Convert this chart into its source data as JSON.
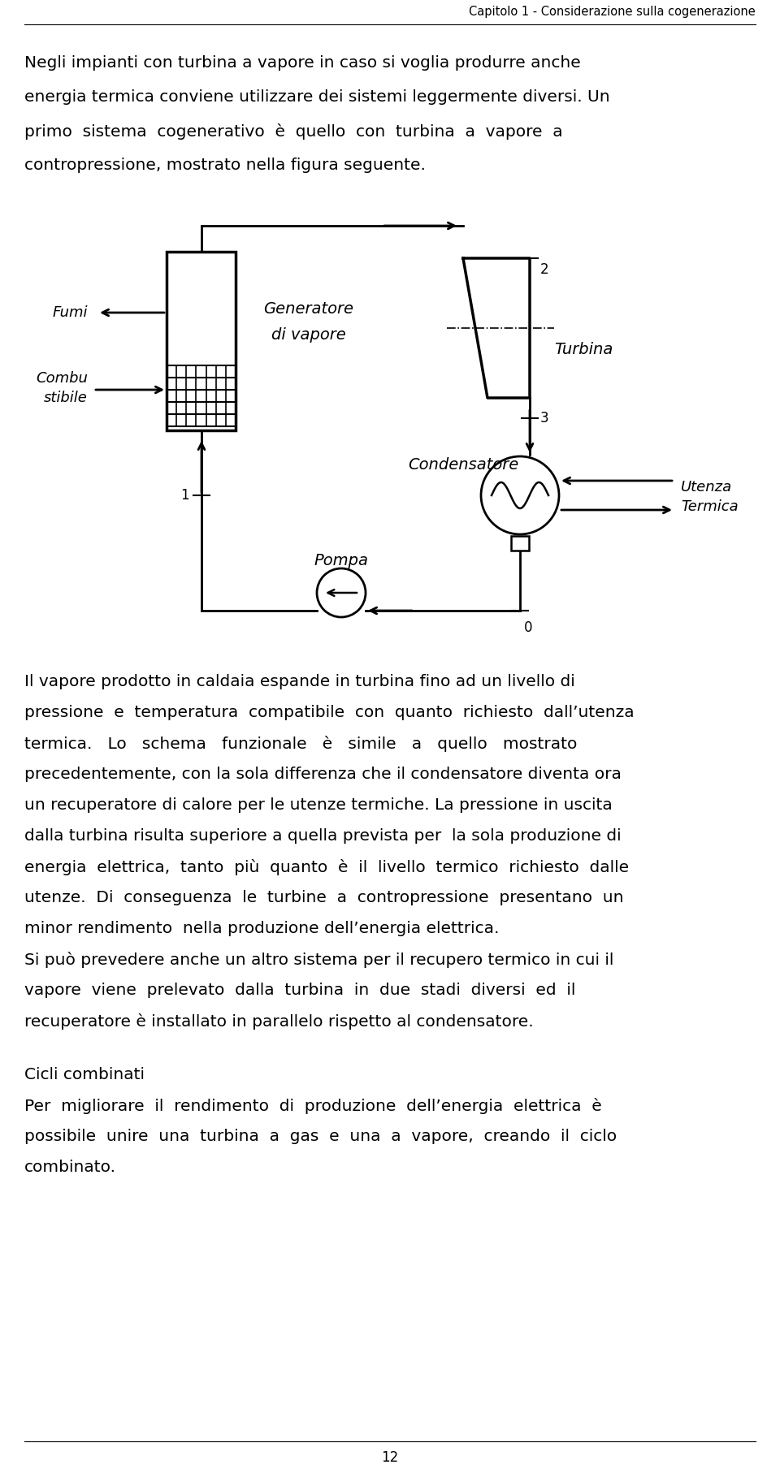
{
  "header_text": "Capitolo 1 - Considerazione sulla cogenerazione",
  "page_number": "12",
  "bg_color": "#ffffff",
  "text_color": "#000000",
  "para1_lines": [
    "Negli impianti con turbina a vapore in caso si voglia produrre anche",
    "energia termica conviene utilizzare dei sistemi leggermente diversi. Un",
    "primo  sistema  cogenerativo  è  quello  con  turbina  a  vapore  a",
    "contropressione, mostrato nella figura seguente."
  ],
  "para2_lines": [
    "Il vapore prodotto in caldaia espande in turbina fino ad un livello di",
    "pressione  e  temperatura  compatibile  con  quanto  richiesto  dall’utenza",
    "termica.   Lo   schema   funzionale   è   simile   a   quello   mostrato",
    "precedentemente, con la sola differenza che il condensatore diventa ora",
    "un recuperatore di calore per le utenze termiche. La pressione in uscita",
    "dalla turbina risulta superiore a quella prevista per  la sola produzione di",
    "energia  elettrica,  tanto  più  quanto  è  il  livello  termico  richiesto  dalle",
    "utenze.  Di  conseguenza  le  turbine  a  contropressione  presentano  un",
    "minor rendimento  nella produzione dell’energia elettrica."
  ],
  "para3_lines": [
    "Si può prevedere anche un altro sistema per il recupero termico in cui il",
    "vapore  viene  prelevato  dalla  turbina  in  due  stadi  diversi  ed  il",
    "recuperatore è installato in parallelo rispetto al condensatore."
  ],
  "section_title": "Cicli combinati",
  "para4_lines": [
    "Per  migliorare  il  rendimento  di  produzione  dell’energia  elettrica  è",
    "possibile  unire  una  turbina  a  gas  e  una  a  vapore,  creando  il  ciclo",
    "combinato."
  ]
}
